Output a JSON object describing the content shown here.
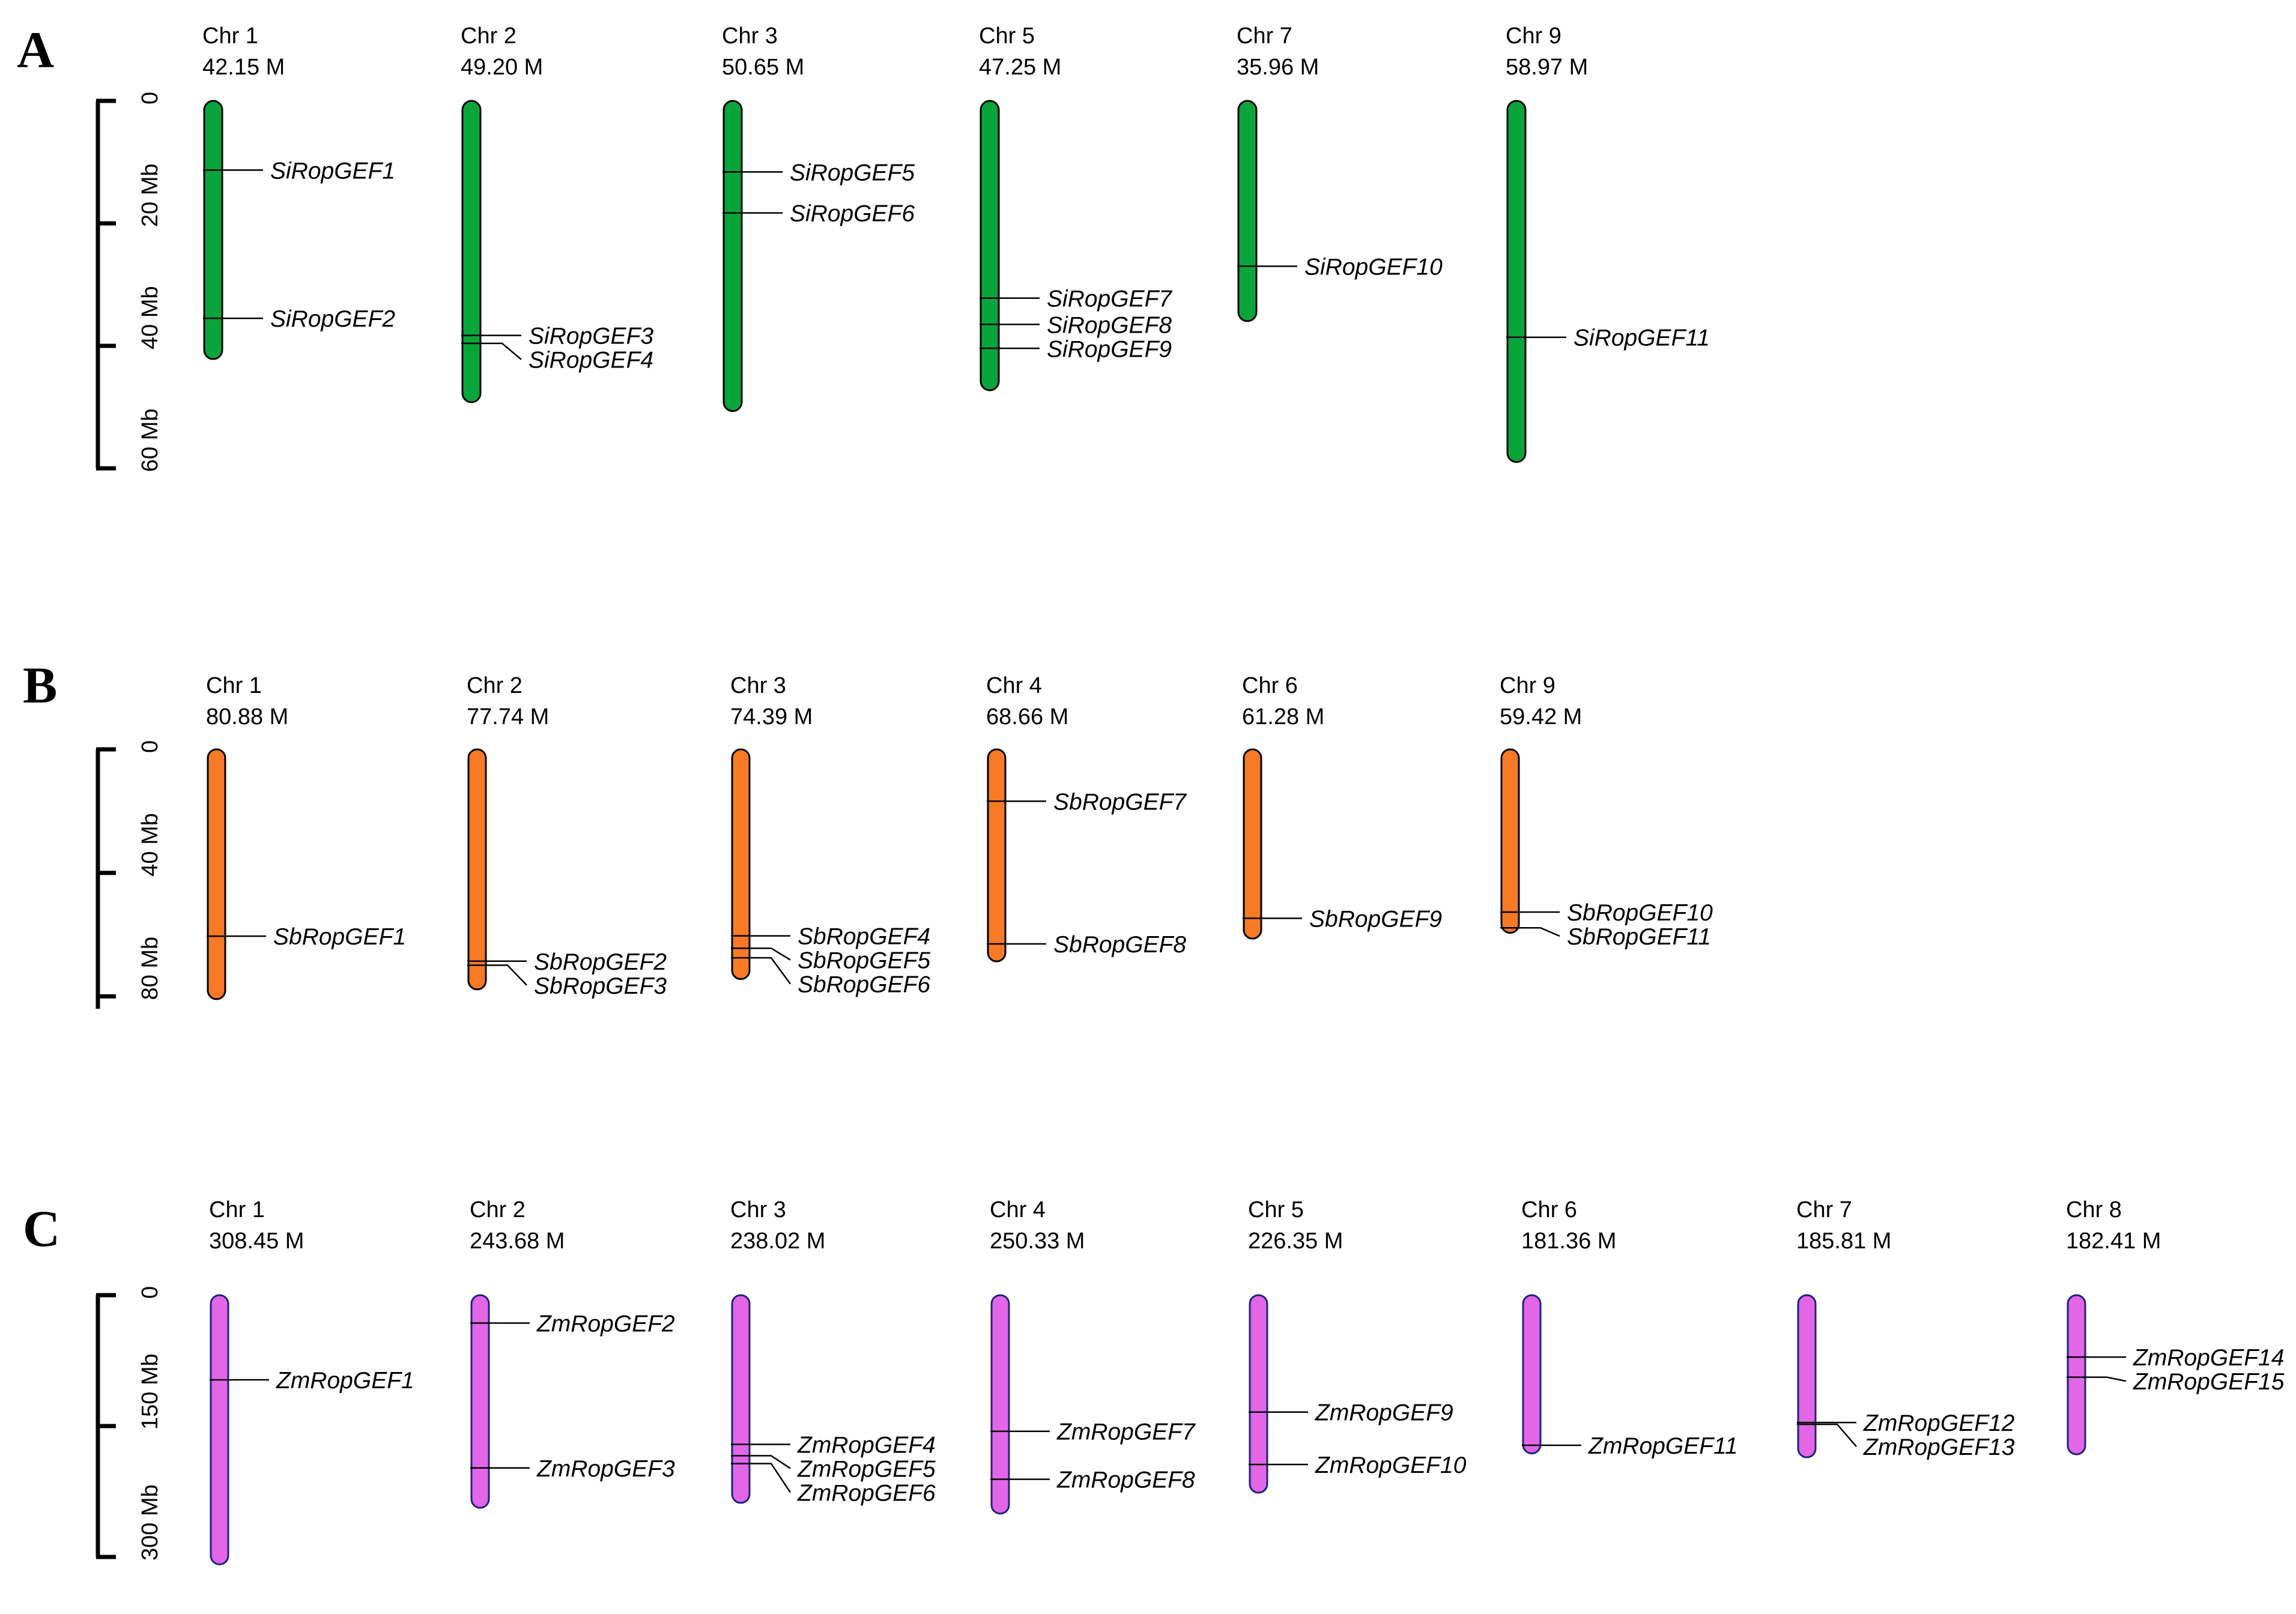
{
  "chart_data": [
    {
      "type": "chromosome-map",
      "panel": "A",
      "species_prefix": "Si",
      "color": "#0aa53a",
      "scale": {
        "unit": "Mb",
        "max": 60,
        "ticks": [
          {
            "value": 0,
            "label": "0"
          },
          {
            "value": 20,
            "label": "20 Mb"
          },
          {
            "value": 40,
            "label": "40 Mb"
          },
          {
            "value": 60,
            "label": "60 Mb"
          }
        ]
      },
      "chromosomes": [
        {
          "name": "Chr 1",
          "size_label": "42.15 M",
          "length": 42.15,
          "genes": [
            {
              "name": "SiRopGEF1",
              "position": 11.3
            },
            {
              "name": "SiRopGEF2",
              "position": 35.5
            }
          ]
        },
        {
          "name": "Chr 2",
          "size_label": "49.20 M",
          "length": 49.2,
          "genes": [
            {
              "name": "SiRopGEF3",
              "position": 38.3
            },
            {
              "name": "SiRopGEF4",
              "position": 39.6
            }
          ]
        },
        {
          "name": "Chr 3",
          "size_label": "50.65 M",
          "length": 50.65,
          "genes": [
            {
              "name": "SiRopGEF5",
              "position": 11.6
            },
            {
              "name": "SiRopGEF6",
              "position": 18.3
            }
          ]
        },
        {
          "name": "Chr 5",
          "size_label": "47.25 M",
          "length": 47.25,
          "genes": [
            {
              "name": "SiRopGEF7",
              "position": 32.2
            },
            {
              "name": "SiRopGEF8",
              "position": 36.5
            },
            {
              "name": "SiRopGEF9",
              "position": 40.4
            }
          ]
        },
        {
          "name": "Chr 7",
          "size_label": "35.96 M",
          "length": 35.96,
          "genes": [
            {
              "name": "SiRopGEF10",
              "position": 27.0
            }
          ]
        },
        {
          "name": "Chr 9",
          "size_label": "58.97 M",
          "length": 58.97,
          "genes": [
            {
              "name": "SiRopGEF11",
              "position": 38.6
            }
          ]
        }
      ]
    },
    {
      "type": "chromosome-map",
      "panel": "B",
      "species_prefix": "Sb",
      "color": "#f97a24",
      "scale": {
        "unit": "Mb",
        "max": 84,
        "ticks": [
          {
            "value": 0,
            "label": "0"
          },
          {
            "value": 40,
            "label": "40 Mb"
          },
          {
            "value": 80,
            "label": "80 Mb"
          }
        ]
      },
      "chromosomes": [
        {
          "name": "Chr 1",
          "size_label": "80.88 M",
          "length": 80.88,
          "genes": [
            {
              "name": "SbRopGEF1",
              "position": 60.5
            }
          ]
        },
        {
          "name": "Chr 2",
          "size_label": "77.74 M",
          "length": 77.74,
          "genes": [
            {
              "name": "SbRopGEF2",
              "position": 68.6
            },
            {
              "name": "SbRopGEF3",
              "position": 69.9
            }
          ]
        },
        {
          "name": "Chr 3",
          "size_label": "74.39 M",
          "length": 74.39,
          "genes": [
            {
              "name": "SbRopGEF4",
              "position": 60.4
            },
            {
              "name": "SbRopGEF5",
              "position": 64.4
            },
            {
              "name": "SbRopGEF6",
              "position": 67.5
            }
          ]
        },
        {
          "name": "Chr 4",
          "size_label": "68.66 M",
          "length": 68.66,
          "genes": [
            {
              "name": "SbRopGEF7",
              "position": 16.8
            },
            {
              "name": "SbRopGEF8",
              "position": 63.0
            }
          ]
        },
        {
          "name": "Chr 6",
          "size_label": "61.28 M",
          "length": 61.28,
          "genes": [
            {
              "name": "SbRopGEF9",
              "position": 54.7
            }
          ]
        },
        {
          "name": "Chr 9",
          "size_label": "59.42 M",
          "length": 59.42,
          "genes": [
            {
              "name": "SbRopGEF10",
              "position": 52.7
            },
            {
              "name": "SbRopGEF11",
              "position": 57.8
            }
          ]
        }
      ]
    },
    {
      "type": "chromosome-map",
      "panel": "C",
      "species_prefix": "Zm",
      "color": "#e366e6",
      "scale": {
        "unit": "Mb",
        "max": 300,
        "ticks": [
          {
            "value": 0,
            "label": "0"
          },
          {
            "value": 150,
            "label": "150 Mb"
          },
          {
            "value": 300,
            "label": "300 Mb"
          }
        ]
      },
      "chromosomes": [
        {
          "name": "Chr 1",
          "size_label": "308.45 M",
          "length": 308.45,
          "genes": [
            {
              "name": "ZmRopGEF1",
              "position": 97
            }
          ]
        },
        {
          "name": "Chr 2",
          "size_label": "243.68 M",
          "length": 243.68,
          "genes": [
            {
              "name": "ZmRopGEF2",
              "position": 32
            },
            {
              "name": "ZmRopGEF3",
              "position": 198
            }
          ]
        },
        {
          "name": "Chr 3",
          "size_label": "238.02 M",
          "length": 238.02,
          "genes": [
            {
              "name": "ZmRopGEF4",
              "position": 171
            },
            {
              "name": "ZmRopGEF5",
              "position": 184
            },
            {
              "name": "ZmRopGEF6",
              "position": 193
            }
          ]
        },
        {
          "name": "Chr 4",
          "size_label": "250.33 M",
          "length": 250.33,
          "genes": [
            {
              "name": "ZmRopGEF7",
              "position": 156
            },
            {
              "name": "ZmRopGEF8",
              "position": 211
            }
          ]
        },
        {
          "name": "Chr 5",
          "size_label": "226.35 M",
          "length": 226.35,
          "genes": [
            {
              "name": "ZmRopGEF9",
              "position": 134
            },
            {
              "name": "ZmRopGEF10",
              "position": 194
            }
          ]
        },
        {
          "name": "Chr 6",
          "size_label": "181.36 M",
          "length": 181.36,
          "genes": [
            {
              "name": "ZmRopGEF11",
              "position": 172
            }
          ]
        },
        {
          "name": "Chr 7",
          "size_label": "185.81 M",
          "length": 185.81,
          "genes": [
            {
              "name": "ZmRopGEF12",
              "position": 146
            },
            {
              "name": "ZmRopGEF13",
              "position": 148
            }
          ]
        },
        {
          "name": "Chr 8",
          "size_label": "182.41 M",
          "length": 182.41,
          "genes": [
            {
              "name": "ZmRopGEF14",
              "position": 71
            },
            {
              "name": "ZmRopGEF15",
              "position": 94
            }
          ]
        }
      ]
    }
  ]
}
